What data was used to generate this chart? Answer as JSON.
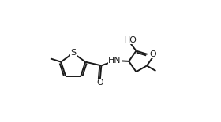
{
  "background": "#ffffff",
  "line_color": "#1a1a1a",
  "lw": 1.4,
  "figsize": [
    2.8,
    1.55
  ],
  "dpi": 100,
  "xlim": [
    0.0,
    1.0
  ],
  "ylim": [
    0.0,
    1.0
  ]
}
